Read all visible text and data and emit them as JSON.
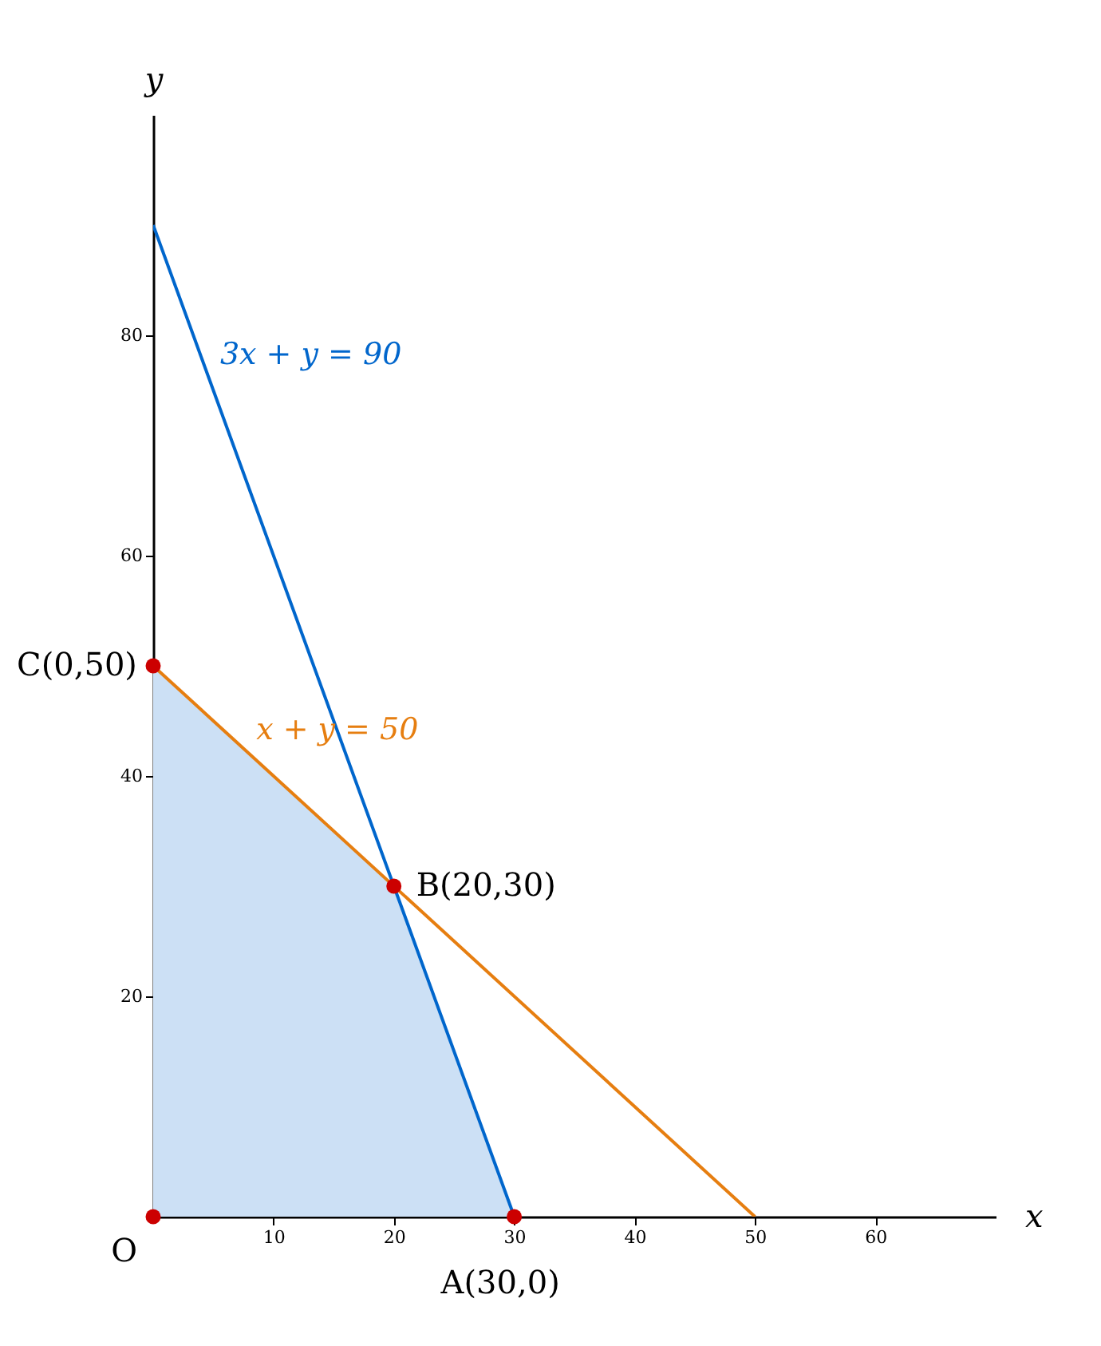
{
  "chart_data": {
    "type": "line",
    "xlabel": "x",
    "ylabel": "y",
    "xlim": [
      0,
      70
    ],
    "ylim": [
      0,
      100
    ],
    "xticks": [
      10,
      20,
      30,
      40,
      50,
      60
    ],
    "yticks": [
      20,
      40,
      60,
      80
    ],
    "grid": false,
    "series": [
      {
        "type": "area",
        "color": "#cce0f5",
        "x": [
          0,
          20,
          30
        ],
        "values": [
          50,
          30,
          0
        ]
      },
      {
        "name": "3x + y = 90",
        "color": "#0066cc",
        "x": [
          0,
          30
        ],
        "values": [
          90,
          0
        ]
      },
      {
        "name": "x + y = 50",
        "color": "#e67e10",
        "x": [
          0,
          50
        ],
        "values": [
          50,
          0
        ]
      },
      {
        "type": "scatter",
        "color": "#cc0000",
        "marker": "circle",
        "x": [
          0,
          30,
          20,
          0
        ],
        "values": [
          0,
          0,
          30,
          50
        ]
      }
    ],
    "annotations": [
      {
        "text": "O",
        "x": 0,
        "y": 0
      },
      {
        "text": "A(30,0)",
        "x": 30,
        "y": 0
      },
      {
        "text": "B(20,30)",
        "x": 20,
        "y": 30
      },
      {
        "text": "C(0,50)",
        "x": 0,
        "y": 50
      }
    ]
  }
}
